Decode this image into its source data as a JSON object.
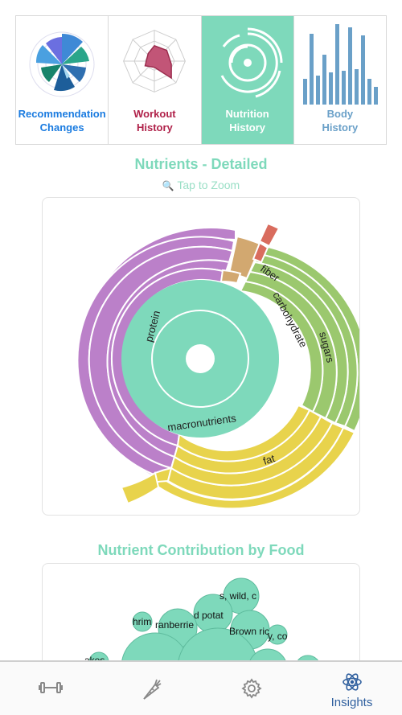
{
  "tiles": [
    {
      "line1": "Recommendation",
      "line2": "Changes",
      "color": "#1a7be0",
      "icon": "rose-chart-icon"
    },
    {
      "line1": "Workout",
      "line2": "History",
      "color": "#b0224a",
      "icon": "radar-chart-icon"
    },
    {
      "line1": "Nutrition",
      "line2": "History",
      "color": "#ffffff",
      "icon": "sunburst-icon",
      "active": true
    },
    {
      "line1": "Body",
      "line2": "History",
      "color": "#6aa0c8",
      "icon": "bar-chart-icon"
    }
  ],
  "nutrients": {
    "title": "Nutrients - Detailed",
    "zoom_hint": "Tap to Zoom",
    "labels": {
      "macronutrients": "macronutrients",
      "protein": "protein",
      "fiber": "fiber",
      "carbohydrate": "carbohydrate",
      "sugars": "sugars",
      "fat": "fat"
    },
    "colors": {
      "macronutrients": "#7ed9bb",
      "protein": "#bb80c9",
      "carbohydrate": "#9bc86e",
      "fat": "#e8d34c",
      "other": "#d2a870",
      "red": "#d96c5e"
    }
  },
  "contribution": {
    "title": "Nutrient Contribution by Food",
    "bubbles": [
      "s, wild, c",
      "d potat",
      "hrim",
      "ranberrie",
      "Brown ric",
      "y, co",
      "akes"
    ]
  },
  "nav": [
    {
      "icon": "dumbbell-icon",
      "label": ""
    },
    {
      "icon": "carrot-icon",
      "label": ""
    },
    {
      "icon": "gear-icon",
      "label": ""
    },
    {
      "icon": "atom-icon",
      "label": "Insights",
      "active": true
    }
  ]
}
